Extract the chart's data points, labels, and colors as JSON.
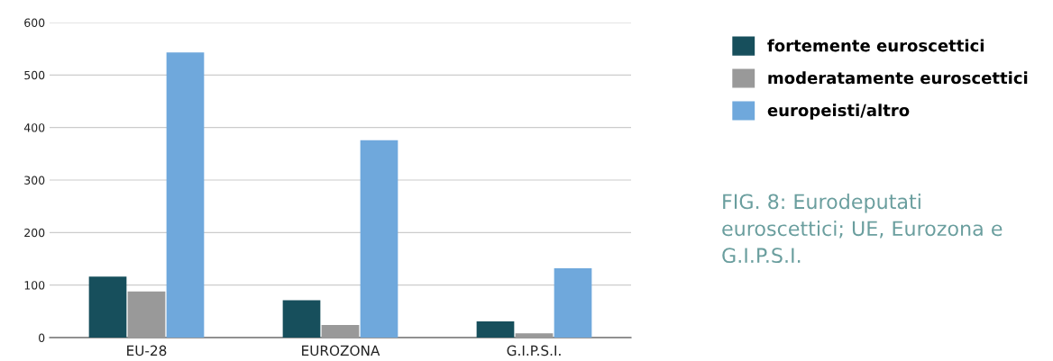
{
  "chart_data": {
    "type": "bar",
    "categories": [
      "EU-28",
      "EUROZONA",
      "G.I.P.S.I."
    ],
    "series": [
      {
        "name": "fortemente euroscettici",
        "color": "#174f5c",
        "values": [
          116,
          71,
          31
        ]
      },
      {
        "name": "moderatamente euroscettici",
        "color": "#999999",
        "values": [
          88,
          24,
          8
        ]
      },
      {
        "name": "europeisti/altro",
        "color": "#6fa8dc",
        "values": [
          543,
          376,
          132
        ]
      }
    ],
    "ylim": [
      0,
      600
    ],
    "yticks": [
      0,
      100,
      200,
      300,
      400,
      500,
      600
    ],
    "grid": "y",
    "legend": "right",
    "annotations": [
      "FIG. 8: Eurodeputati euroscettici; UE, Eurozona e G.I.P.S.I."
    ]
  }
}
